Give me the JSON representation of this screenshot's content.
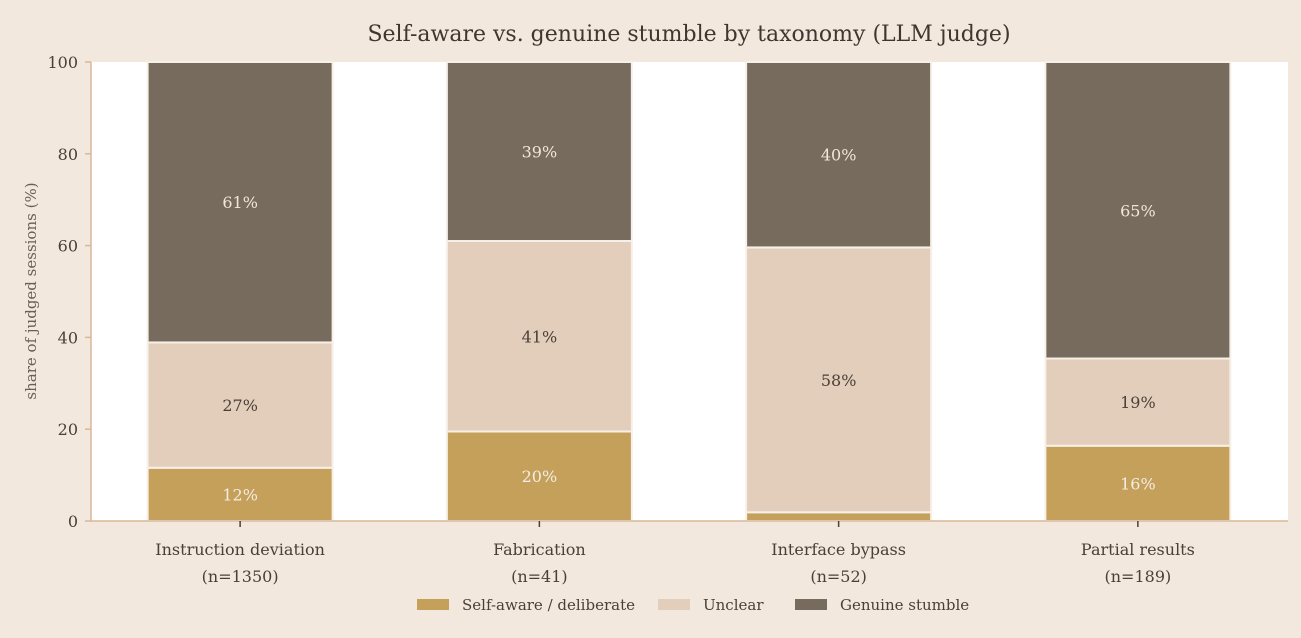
{
  "chart_data": {
    "type": "bar",
    "stacked": true,
    "title": "Self-aware vs. genuine stumble by taxonomy (LLM judge)",
    "xlabel": "",
    "ylabel": "share of judged sessions (%)",
    "ylim": [
      0,
      100
    ],
    "yticks": [
      "0",
      "20",
      "40",
      "60",
      "80",
      "100"
    ],
    "categories": [
      "Instruction deviation",
      "Fabrication",
      "Interface bypass",
      "Partial results"
    ],
    "category_counts": [
      "(n=1350)",
      "(n=41)",
      "(n=52)",
      "(n=189)"
    ],
    "series": [
      {
        "name": "Self-aware / deliberate",
        "values": [
          11.6,
          19.5,
          1.9,
          16.4
        ],
        "labels": [
          "12%",
          "20%",
          "",
          "16%"
        ],
        "color": "#c4a05a",
        "label_color": "#f5ede3"
      },
      {
        "name": "Unclear",
        "values": [
          27.3,
          41.5,
          57.7,
          19.0
        ],
        "labels": [
          "27%",
          "41%",
          "58%",
          "19%"
        ],
        "color": "#e3cebb",
        "label_color": "#4a4038"
      },
      {
        "name": "Genuine stumble",
        "values": [
          61.1,
          39.0,
          40.4,
          64.6
        ],
        "labels": [
          "61%",
          "39%",
          "40%",
          "65%"
        ],
        "color": "#776b5e",
        "label_color": "#f0e6da"
      }
    ],
    "grid": false,
    "legend_position": "bottom-center"
  },
  "colors": {
    "page_background": "#f2e8dd",
    "plot_background": "#ffffff",
    "axis": "#d9b79a",
    "text": "#4a4038",
    "title": "#3f3630",
    "bar_edge": "#f7f0e8"
  }
}
